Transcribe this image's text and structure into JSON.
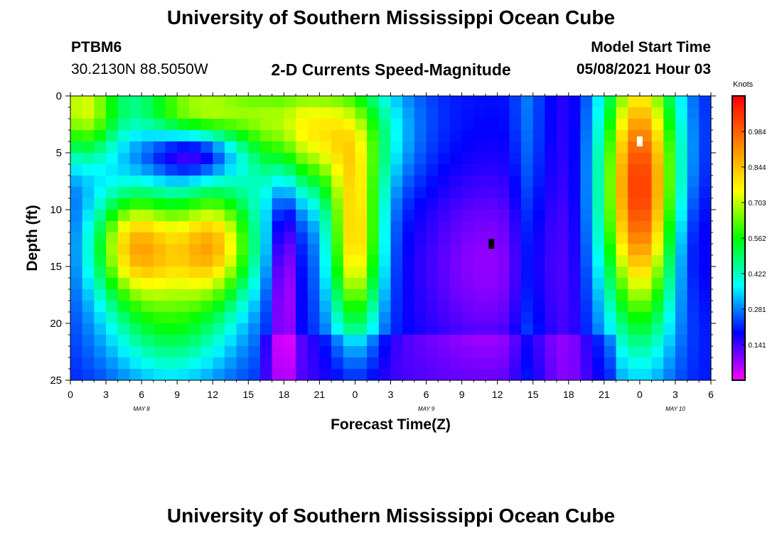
{
  "header": {
    "title": "University of Southern Mississippi Ocean Cube",
    "station": "PTBM6",
    "coords": "30.2130N  88.5050W",
    "subtitle": "2-D Currents Speed-Magnitude",
    "model_start_label": "Model Start Time",
    "model_start_value": "05/08/2021 Hour 03"
  },
  "footer": {
    "title": "University of Southern Mississippi Ocean Cube"
  },
  "colorbar": {
    "unit": "Knots",
    "ticks": [
      "0.984",
      "0.844",
      "0.703",
      "0.562",
      "0.422",
      "0.281",
      "0.141"
    ],
    "tick_values": [
      0.984,
      0.844,
      0.703,
      0.562,
      0.422,
      0.281,
      0.141
    ],
    "min": 0.0,
    "max": 1.125
  },
  "chart_data": {
    "type": "heatmap",
    "xlabel": "Forecast Time(Z)",
    "ylabel": "Depth (ft)",
    "x_tick_labels": [
      "0",
      "3",
      "6",
      "9",
      "12",
      "15",
      "18",
      "21",
      "0",
      "3",
      "6",
      "9",
      "12",
      "15",
      "18",
      "21",
      "0",
      "3",
      "6"
    ],
    "x_hours": [
      0,
      3,
      6,
      9,
      12,
      15,
      18,
      21,
      24,
      27,
      30,
      33,
      36,
      39,
      42,
      45,
      48,
      51,
      54
    ],
    "xlim_hours": [
      0,
      54
    ],
    "date_labels": [
      {
        "text": "MAY 8",
        "hour": 6
      },
      {
        "text": "MAY 9",
        "hour": 30
      },
      {
        "text": "MAY 10",
        "hour": 51
      }
    ],
    "y_tick_labels": [
      "0",
      "5",
      "10",
      "15",
      "20",
      "25"
    ],
    "y_values": [
      0,
      5,
      10,
      15,
      20,
      25
    ],
    "ylim": [
      0,
      25
    ],
    "y_inverted": true,
    "colormap": [
      "#ff00ff",
      "#0000ff",
      "#00ffff",
      "#00ff00",
      "#ffff00",
      "#ff8000",
      "#ff0000"
    ],
    "markers": [
      {
        "hour": 35.5,
        "depth": 13,
        "color": "#000000"
      },
      {
        "hour": 48,
        "depth": 4,
        "color": "#ffffff"
      }
    ]
  }
}
